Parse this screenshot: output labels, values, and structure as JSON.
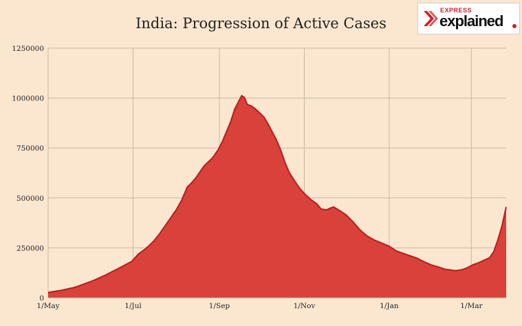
{
  "title": "India: Progression of Active Cases",
  "logo": {
    "express": "EXPRESS",
    "explained": "explained",
    "accent_color": "#d41f26"
  },
  "colors": {
    "background": "#fbe6cf",
    "area_fill": "#d9413b",
    "area_line": "#b51e1e",
    "grid": "#c9b7a3"
  },
  "chart_data": {
    "type": "area",
    "title": "India: Progression of Active Cases",
    "xlabel": "",
    "ylabel": "",
    "ylim": [
      0,
      1250000
    ],
    "yticks": [
      0,
      250000,
      500000,
      750000,
      1000000,
      1250000
    ],
    "ytick_labels": [
      "0",
      "250000",
      "500000",
      "750000",
      "1000000",
      "1250000"
    ],
    "xlim": [
      "2020-05-01",
      "2021-03-26"
    ],
    "xticks": [
      "2020-05-01",
      "2020-07-01",
      "2020-09-01",
      "2020-11-01",
      "2021-01-01",
      "2021-03-01"
    ],
    "xtick_labels": [
      "1/May",
      "1/Jul",
      "1/Sep",
      "1/Nov",
      "1/Jan",
      "1/Mar"
    ],
    "grid": true,
    "legend": "none",
    "series": [
      {
        "points": [
          [
            "2020-05-01",
            27000
          ],
          [
            "2020-05-10",
            37000
          ],
          [
            "2020-05-20",
            52000
          ],
          [
            "2020-05-31",
            80000
          ],
          [
            "2020-06-03",
            88000
          ],
          [
            "2020-06-10",
            110000
          ],
          [
            "2020-06-20",
            145000
          ],
          [
            "2020-06-30",
            182000
          ],
          [
            "2020-07-05",
            220000
          ],
          [
            "2020-07-08",
            235000
          ],
          [
            "2020-07-12",
            258000
          ],
          [
            "2020-07-16",
            285000
          ],
          [
            "2020-07-20",
            320000
          ],
          [
            "2020-07-24",
            360000
          ],
          [
            "2020-07-28",
            400000
          ],
          [
            "2020-08-01",
            440000
          ],
          [
            "2020-08-05",
            490000
          ],
          [
            "2020-08-09",
            555000
          ],
          [
            "2020-08-12",
            575000
          ],
          [
            "2020-08-15",
            600000
          ],
          [
            "2020-08-18",
            630000
          ],
          [
            "2020-08-21",
            660000
          ],
          [
            "2020-08-24",
            680000
          ],
          [
            "2020-08-27",
            700000
          ],
          [
            "2020-08-31",
            740000
          ],
          [
            "2020-09-03",
            780000
          ],
          [
            "2020-09-06",
            830000
          ],
          [
            "2020-09-09",
            880000
          ],
          [
            "2020-09-12",
            945000
          ],
          [
            "2020-09-15",
            985000
          ],
          [
            "2020-09-17",
            1012000
          ],
          [
            "2020-09-19",
            1003000
          ],
          [
            "2020-09-21",
            968000
          ],
          [
            "2020-09-24",
            960000
          ],
          [
            "2020-09-27",
            945000
          ],
          [
            "2020-09-30",
            925000
          ],
          [
            "2020-10-03",
            905000
          ],
          [
            "2020-10-06",
            870000
          ],
          [
            "2020-10-09",
            830000
          ],
          [
            "2020-10-12",
            790000
          ],
          [
            "2020-10-15",
            740000
          ],
          [
            "2020-10-18",
            680000
          ],
          [
            "2020-10-21",
            630000
          ],
          [
            "2020-10-25",
            585000
          ],
          [
            "2020-10-29",
            545000
          ],
          [
            "2020-11-02",
            515000
          ],
          [
            "2020-11-06",
            490000
          ],
          [
            "2020-11-10",
            470000
          ],
          [
            "2020-11-13",
            445000
          ],
          [
            "2020-11-17",
            440000
          ],
          [
            "2020-11-20",
            450000
          ],
          [
            "2020-11-22",
            455000
          ],
          [
            "2020-11-26",
            438000
          ],
          [
            "2020-12-01",
            415000
          ],
          [
            "2020-12-06",
            380000
          ],
          [
            "2020-12-11",
            340000
          ],
          [
            "2020-12-16",
            310000
          ],
          [
            "2020-12-21",
            290000
          ],
          [
            "2020-12-26",
            275000
          ],
          [
            "2021-01-01",
            258000
          ],
          [
            "2021-01-06",
            235000
          ],
          [
            "2021-01-11",
            222000
          ],
          [
            "2021-01-16",
            210000
          ],
          [
            "2021-01-21",
            198000
          ],
          [
            "2021-01-26",
            180000
          ],
          [
            "2021-01-31",
            165000
          ],
          [
            "2021-02-05",
            155000
          ],
          [
            "2021-02-10",
            143000
          ],
          [
            "2021-02-15",
            138000
          ],
          [
            "2021-02-18",
            136000
          ],
          [
            "2021-02-22",
            140000
          ],
          [
            "2021-02-26",
            150000
          ],
          [
            "2021-03-02",
            165000
          ],
          [
            "2021-03-06",
            175000
          ],
          [
            "2021-03-10",
            188000
          ],
          [
            "2021-03-14",
            200000
          ],
          [
            "2021-03-17",
            230000
          ],
          [
            "2021-03-20",
            290000
          ],
          [
            "2021-03-23",
            360000
          ],
          [
            "2021-03-26",
            455000
          ]
        ]
      }
    ]
  }
}
